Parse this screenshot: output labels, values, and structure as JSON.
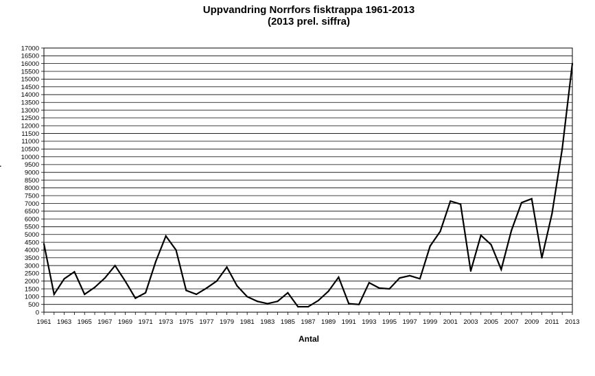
{
  "chart_data": {
    "type": "line",
    "title": "Uppvandring Norrfors fisktrappa 1961-2013",
    "subtitle": "(2013 prel. siffra)",
    "xlabel": "Antal",
    "ylabel": "r",
    "ylim": [
      0,
      17000
    ],
    "ytick_step": 500,
    "xlim": [
      1961,
      2013
    ],
    "xtick_labels": [
      "1961",
      "1963",
      "1965",
      "1967",
      "1969",
      "1971",
      "1973",
      "1975",
      "1977",
      "1979",
      "1981",
      "1983",
      "1985",
      "1987",
      "1989",
      "1991",
      "1993",
      "1995",
      "1997",
      "1999",
      "2001",
      "2003",
      "2005",
      "2007",
      "2009",
      "2011",
      "2013"
    ],
    "grid": true,
    "x": [
      1961,
      1962,
      1963,
      1964,
      1965,
      1966,
      1967,
      1968,
      1969,
      1970,
      1971,
      1972,
      1973,
      1974,
      1975,
      1976,
      1977,
      1978,
      1979,
      1980,
      1981,
      1982,
      1983,
      1984,
      1985,
      1986,
      1987,
      1988,
      1989,
      1990,
      1991,
      1992,
      1993,
      1994,
      1995,
      1996,
      1997,
      1998,
      1999,
      2000,
      2001,
      2002,
      2003,
      2004,
      2005,
      2006,
      2007,
      2008,
      2009,
      2010,
      2011,
      2012,
      2013
    ],
    "values": [
      4400,
      1150,
      2150,
      2600,
      1150,
      1600,
      2200,
      3000,
      2000,
      900,
      1250,
      3250,
      4900,
      4000,
      1400,
      1150,
      1550,
      2000,
      2900,
      1700,
      1000,
      700,
      550,
      700,
      1250,
      350,
      350,
      750,
      1350,
      2250,
      550,
      500,
      1900,
      1550,
      1500,
      2200,
      2350,
      2150,
      4250,
      5200,
      7150,
      6950,
      2650,
      4950,
      4350,
      2750,
      5250,
      7050,
      7300,
      3500,
      6350,
      10500,
      16000
    ],
    "line_color": "#000000"
  }
}
